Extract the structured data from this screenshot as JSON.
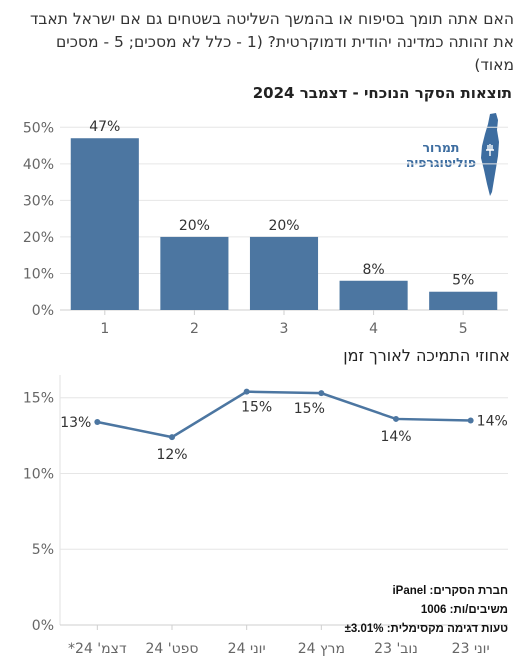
{
  "question_text": "האם אתה תומך בסיפוח או בהמשך השליטה בשטחים גם אם ישראל תאבד את זהותה כמדינה יהודית ודמוקרטית? (1 - כלל לא מסכים; 5 - מסכים מאוד)",
  "subtitle": "תוצאות הסקר הנוכחי - דצמבר 2024",
  "logo": {
    "line1": "תמרור",
    "line2": "פוליטוגרפיה",
    "icon": "israel-map-icon",
    "color": "#3d6da0"
  },
  "trend_title": "אחוזי התמיכה לאורך זמן",
  "footer": {
    "company": "חברת הסקרים: iPanel",
    "respondents": "משיבים/ות: 1006",
    "error": "טעות דגימה מקסימלית: ±3.01%"
  },
  "colors": {
    "bar": "#4c76a1",
    "line": "#4c76a1",
    "grid": "#e6e6e6",
    "axis_text": "#666666"
  },
  "chart_data": [
    {
      "type": "bar",
      "categories": [
        "1",
        "2",
        "3",
        "4",
        "5"
      ],
      "values": [
        47,
        20,
        20,
        8,
        5
      ],
      "data_labels": [
        "47%",
        "20%",
        "20%",
        "8%",
        "5%"
      ],
      "y_ticks": [
        "0%",
        "10%",
        "20%",
        "30%",
        "40%",
        "50%"
      ],
      "ylim": [
        0,
        55
      ],
      "grid": true
    },
    {
      "type": "line",
      "categories": [
        "יוני 23",
        "נוב' 23",
        "מרץ 24",
        "יוני 24",
        "ספט' 24",
        "דצמ' 24*"
      ],
      "values": [
        13.5,
        13.6,
        15.3,
        15.4,
        12.4,
        13.4
      ],
      "data_labels": [
        "14%",
        "14%",
        "15%",
        "15%",
        "12%",
        "13%"
      ],
      "y_ticks": [
        "0%",
        "5%",
        "10%",
        "15%"
      ],
      "ylim": [
        0,
        16.5
      ],
      "grid": true
    }
  ]
}
